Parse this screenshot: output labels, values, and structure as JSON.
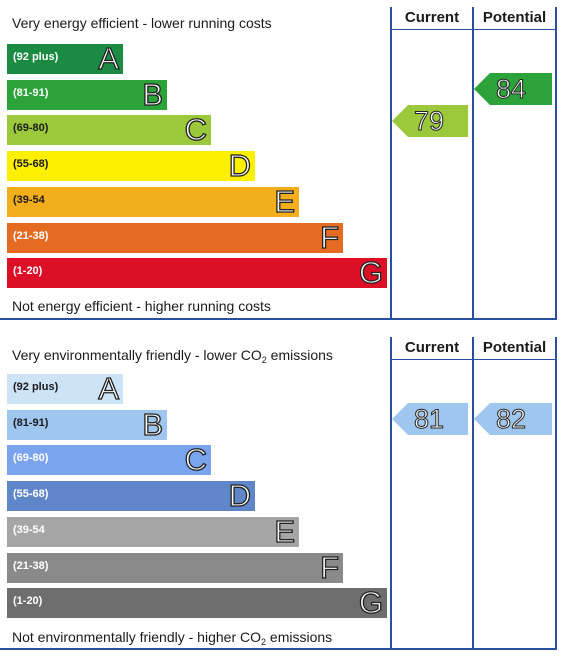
{
  "chart_data": [
    {
      "type": "table",
      "top_caption": "Very energy efficient - lower running costs",
      "bottom_caption": "Not energy efficient - higher running costs",
      "columns": [
        "Current",
        "Potential"
      ],
      "bands": [
        {
          "range": "(92 plus)",
          "letter": "A",
          "color": "#1b8a43"
        },
        {
          "range": "(81-91)",
          "letter": "B",
          "color": "#2ba339"
        },
        {
          "range": "(69-80)",
          "letter": "C",
          "color": "#9bc93b"
        },
        {
          "range": "(55-68)",
          "letter": "D",
          "color": "#fcef00"
        },
        {
          "range": "(39-54",
          "letter": "E",
          "color": "#f2ae1b"
        },
        {
          "range": "(21-38)",
          "letter": "F",
          "color": "#e56b22"
        },
        {
          "range": "(1-20)",
          "letter": "G",
          "color": "#dc0f27"
        }
      ],
      "ratings": [
        {
          "column": "Current",
          "value": 79,
          "band": "C",
          "color": "#9bc93b"
        },
        {
          "column": "Potential",
          "value": 84,
          "band": "B",
          "color": "#2ba339"
        }
      ]
    },
    {
      "type": "table",
      "top_caption": {
        "text": "Very environmentally friendly - lower CO",
        "sub": "2",
        "tail": " emissions"
      },
      "bottom_caption": {
        "text": "Not environmentally friendly - higher CO",
        "sub": "2",
        "tail": " emissions"
      },
      "columns": [
        "Current",
        "Potential"
      ],
      "bands": [
        {
          "range": "(92 plus)",
          "letter": "A",
          "color": "#cde3f6"
        },
        {
          "range": "(81-91)",
          "letter": "B",
          "color": "#9fc6ef"
        },
        {
          "range": "(69-80)",
          "letter": "C",
          "color": "#7aa3ed"
        },
        {
          "range": "(55-68)",
          "letter": "D",
          "color": "#5f86c8"
        },
        {
          "range": "(39-54",
          "letter": "E",
          "color": "#a6a6a6"
        },
        {
          "range": "(21-38)",
          "letter": "F",
          "color": "#8a8a8a"
        },
        {
          "range": "(1-20)",
          "letter": "G",
          "color": "#6e6e6e"
        }
      ],
      "ratings": [
        {
          "column": "Current",
          "value": 81,
          "band": "B",
          "color": "#9fc6ef"
        },
        {
          "column": "Potential",
          "value": 82,
          "band": "B",
          "color": "#9fc6ef"
        }
      ]
    }
  ]
}
